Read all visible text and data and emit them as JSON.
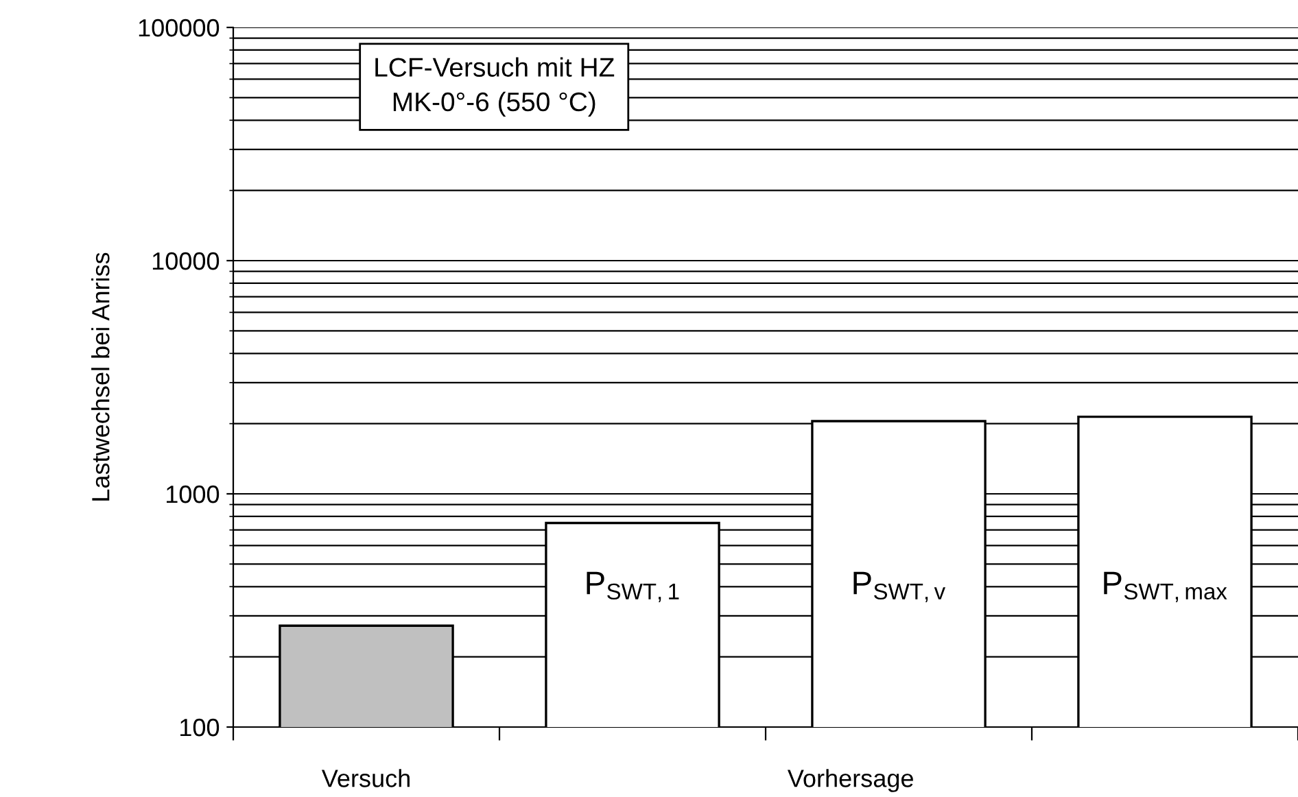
{
  "chart_data": {
    "type": "bar",
    "ylabel": "Lastwechsel bei Anriss",
    "categories": [
      "Versuch",
      null,
      "Vorhersage",
      null
    ],
    "values": [
      272,
      750,
      2050,
      2140
    ],
    "colors": [
      "#c0c0c0",
      "#ffffff",
      "#ffffff",
      "#ffffff"
    ],
    "log": true,
    "ylim": [
      100,
      100000
    ],
    "yticks": [
      100,
      1000,
      10000,
      100000
    ],
    "grid": "y",
    "annotations": [
      "LCF-Versuch mit HZ\nMK-0°-6 (550 °C)",
      "P$_{SWT,1}$",
      "P$_{SWT,v}$",
      "P$_{SWT,max}$"
    ]
  }
}
